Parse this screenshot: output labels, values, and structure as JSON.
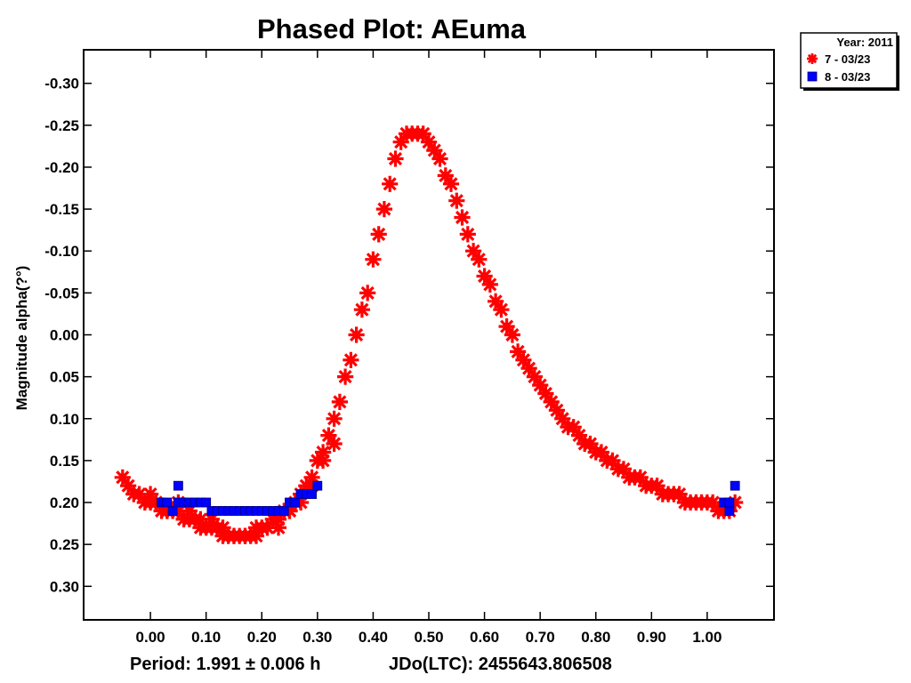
{
  "chart_data": {
    "type": "scatter",
    "title": "Phased Plot: AEuma",
    "ylabel": "Magnitude alpha(?°)",
    "footer_period": "Period: 1.991 ± 0.006 h",
    "footer_jd": "JDo(LTC): 2455643.806508",
    "xlim": [
      -0.12,
      1.12
    ],
    "ylim": [
      0.34,
      -0.34
    ],
    "y_inverted": true,
    "grid": false,
    "legend_placement": "top-right outside",
    "x_ticks": [
      "0.00",
      "0.10",
      "0.20",
      "0.30",
      "0.40",
      "0.50",
      "0.60",
      "0.70",
      "0.80",
      "0.90",
      "1.00"
    ],
    "y_ticks": [
      "-0.30",
      "-0.25",
      "-0.20",
      "-0.15",
      "-0.10",
      "-0.05",
      "0.00",
      "0.05",
      "0.10",
      "0.15",
      "0.20",
      "0.25",
      "0.30"
    ],
    "legend": {
      "title": "Year: 2011",
      "entries": [
        "7 - 03/23",
        "8 - 03/23"
      ]
    },
    "series": [
      {
        "name": "7 - 03/23",
        "marker": "asterisk",
        "color": "#ff0000",
        "x": [
          -0.05,
          -0.04,
          -0.03,
          -0.02,
          -0.01,
          0.0,
          0.01,
          0.02,
          0.03,
          0.04,
          0.05,
          0.06,
          0.07,
          0.08,
          0.09,
          0.1,
          0.11,
          0.12,
          0.13,
          0.14,
          0.15,
          0.16,
          0.17,
          0.18,
          0.19,
          0.2,
          0.21,
          0.22,
          0.23,
          0.24,
          0.25,
          0.26,
          0.27,
          0.28,
          0.29,
          0.3,
          0.31,
          0.32,
          0.33,
          0.34,
          0.35,
          0.36,
          0.37,
          0.38,
          0.39,
          0.4,
          0.41,
          0.42,
          0.43,
          0.44,
          0.45,
          0.46,
          0.47,
          0.48,
          0.49,
          0.5,
          0.51,
          0.52,
          0.53,
          0.54,
          0.55,
          0.56,
          0.57,
          0.58,
          0.59,
          0.6,
          0.61,
          0.62,
          0.63,
          0.64,
          0.65,
          0.66,
          0.67,
          0.68,
          0.69,
          0.7,
          0.71,
          0.72,
          0.73,
          0.74,
          0.75,
          0.76,
          0.77,
          0.78,
          0.79,
          0.8,
          0.81,
          0.82,
          0.83,
          0.84,
          0.85,
          0.86,
          0.87,
          0.88,
          0.89,
          0.9,
          0.91,
          0.92,
          0.93,
          0.94,
          0.95,
          0.96,
          0.97,
          0.98,
          0.99,
          1.0,
          1.01,
          1.02,
          1.03,
          1.04,
          1.05,
          0.0,
          0.01,
          0.03,
          0.05,
          0.07,
          0.09,
          0.11,
          0.13,
          0.15,
          0.17,
          0.19,
          0.21,
          0.23,
          0.25,
          0.27,
          0.29,
          0.31,
          0.33
        ],
        "y": [
          0.17,
          0.18,
          0.19,
          0.19,
          0.2,
          0.2,
          0.2,
          0.21,
          0.21,
          0.21,
          0.21,
          0.22,
          0.22,
          0.22,
          0.23,
          0.23,
          0.23,
          0.23,
          0.24,
          0.24,
          0.24,
          0.24,
          0.24,
          0.24,
          0.23,
          0.23,
          0.23,
          0.22,
          0.22,
          0.21,
          0.21,
          0.2,
          0.19,
          0.18,
          0.17,
          0.15,
          0.14,
          0.12,
          0.1,
          0.08,
          0.05,
          0.03,
          0.0,
          -0.03,
          -0.05,
          -0.09,
          -0.12,
          -0.15,
          -0.18,
          -0.21,
          -0.23,
          -0.24,
          -0.24,
          -0.24,
          -0.24,
          -0.23,
          -0.22,
          -0.21,
          -0.19,
          -0.18,
          -0.16,
          -0.14,
          -0.12,
          -0.1,
          -0.09,
          -0.07,
          -0.06,
          -0.04,
          -0.03,
          -0.01,
          0.0,
          0.02,
          0.03,
          0.04,
          0.05,
          0.06,
          0.07,
          0.08,
          0.09,
          0.1,
          0.11,
          0.11,
          0.12,
          0.13,
          0.13,
          0.14,
          0.14,
          0.15,
          0.15,
          0.16,
          0.16,
          0.17,
          0.17,
          0.17,
          0.18,
          0.18,
          0.18,
          0.19,
          0.19,
          0.19,
          0.19,
          0.2,
          0.2,
          0.2,
          0.2,
          0.2,
          0.2,
          0.21,
          0.21,
          0.21,
          0.2,
          0.19,
          0.2,
          0.21,
          0.2,
          0.21,
          0.22,
          0.22,
          0.23,
          0.24,
          0.24,
          0.24,
          0.23,
          0.23,
          0.21,
          0.2,
          0.18,
          0.15,
          0.13
        ]
      },
      {
        "name": "8 - 03/23",
        "marker": "square",
        "color": "#0000ff",
        "x": [
          0.02,
          0.03,
          0.04,
          0.05,
          0.06,
          0.07,
          0.08,
          0.09,
          0.1,
          0.11,
          0.12,
          0.13,
          0.14,
          0.15,
          0.16,
          0.17,
          0.18,
          0.19,
          0.2,
          0.21,
          0.22,
          0.23,
          0.24,
          0.25,
          0.26,
          0.27,
          0.28,
          0.29,
          0.3,
          0.05,
          1.03,
          1.04,
          1.05,
          1.04
        ],
        "y": [
          0.2,
          0.2,
          0.21,
          0.2,
          0.2,
          0.2,
          0.2,
          0.2,
          0.2,
          0.21,
          0.21,
          0.21,
          0.21,
          0.21,
          0.21,
          0.21,
          0.21,
          0.21,
          0.21,
          0.21,
          0.21,
          0.21,
          0.21,
          0.2,
          0.2,
          0.19,
          0.19,
          0.19,
          0.18,
          0.18,
          0.2,
          0.21,
          0.18,
          0.2
        ]
      }
    ]
  }
}
